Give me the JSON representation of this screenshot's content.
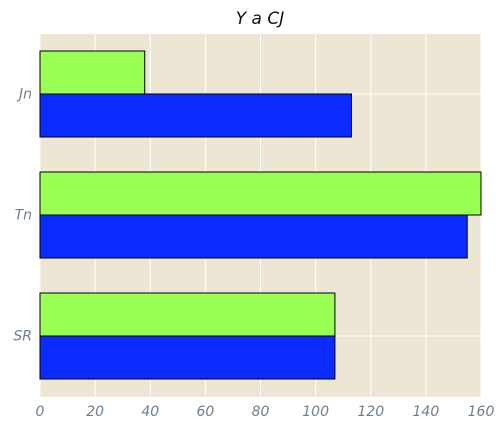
{
  "chart_data": {
    "type": "bar",
    "orientation": "horizontal",
    "title": "Y a CJ",
    "xlabel": "",
    "ylabel": "",
    "categories": [
      "Jn",
      "Tn",
      "SR"
    ],
    "series": [
      {
        "values": [
          113,
          155,
          107
        ],
        "color": "#0a2cff"
      },
      {
        "values": [
          38,
          160,
          107
        ],
        "color": "#99ff55"
      }
    ],
    "xlim": [
      0,
      160
    ],
    "xticks": [
      0,
      20,
      40,
      60,
      80,
      100,
      120,
      140,
      160
    ],
    "grid": true,
    "background": "#ede6d4",
    "grid_color": "#ffffff",
    "edge_color": "#000000"
  }
}
